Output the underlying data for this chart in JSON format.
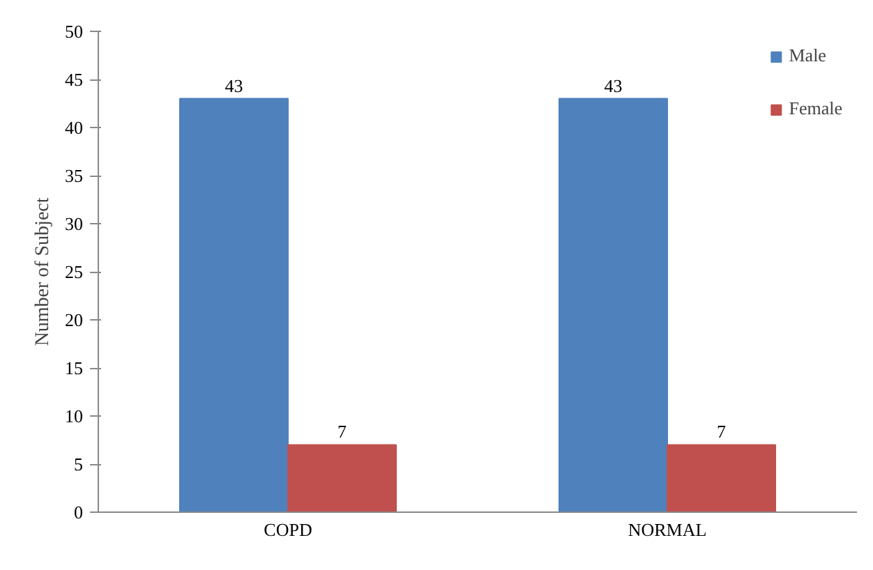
{
  "chart_data": {
    "type": "bar",
    "ylabel": "Number of Subject",
    "categories": [
      "COPD",
      "NORMAL"
    ],
    "series": [
      {
        "name": "Male",
        "color": "#4f81bd",
        "values": [
          43,
          43
        ]
      },
      {
        "name": "Female",
        "color": "#c0504d",
        "values": [
          7,
          7
        ]
      }
    ],
    "ylim": [
      0,
      50
    ],
    "yticks": [
      0,
      5,
      10,
      15,
      20,
      25,
      30,
      35,
      40,
      45,
      50
    ],
    "grid": false,
    "legend": "top right",
    "data_labels": true
  }
}
